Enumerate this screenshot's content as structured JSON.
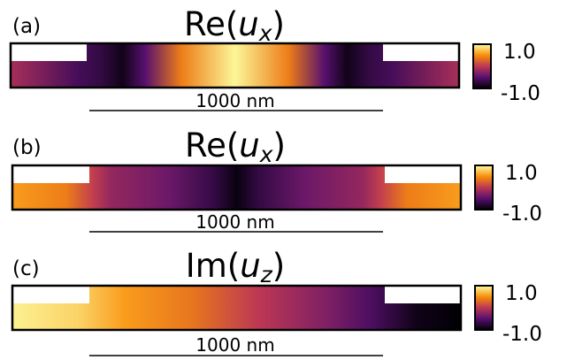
{
  "colors": {
    "frame": "#000000",
    "background": "#ffffff",
    "colormap": "inferno"
  },
  "panels": [
    {
      "letter": "(a)",
      "quantity": "Re(",
      "symbol": "u",
      "subscript": "x",
      "close": ")",
      "scale_label": "1000 nm",
      "colorbar": {
        "max_label": "1.0",
        "min_label": "-1.0",
        "max": 1.0,
        "min": -1.0
      },
      "bottom_profile": [
        [
          0,
          0.45
        ],
        [
          0.15,
          0.2
        ],
        [
          0.2,
          0.15
        ],
        [
          0.25,
          0.05
        ],
        [
          0.3,
          0.25
        ],
        [
          0.38,
          0.7
        ],
        [
          0.5,
          0.98
        ],
        [
          0.62,
          0.7
        ],
        [
          0.7,
          0.25
        ],
        [
          0.75,
          0.05
        ],
        [
          0.8,
          0.15
        ],
        [
          0.85,
          0.2
        ],
        [
          1,
          0.45
        ]
      ]
    },
    {
      "letter": "(b)",
      "quantity": "Re(",
      "symbol": "u",
      "subscript": "x",
      "close": ")",
      "scale_label": "1000 nm",
      "colorbar": {
        "max_label": "1.0",
        "min_label": "-1.0",
        "max": 1.0,
        "min": -1.0
      },
      "bottom_profile": [
        [
          0,
          0.78
        ],
        [
          0.12,
          0.7
        ],
        [
          0.18,
          0.52
        ],
        [
          0.22,
          0.4
        ],
        [
          0.35,
          0.3
        ],
        [
          0.45,
          0.15
        ],
        [
          0.5,
          0.03
        ],
        [
          0.55,
          0.15
        ],
        [
          0.65,
          0.3
        ],
        [
          0.78,
          0.4
        ],
        [
          0.82,
          0.52
        ],
        [
          0.88,
          0.7
        ],
        [
          1,
          0.78
        ]
      ]
    },
    {
      "letter": "(c)",
      "quantity": "Im(",
      "symbol": "u",
      "subscript": "z",
      "close": ")",
      "scale_label": "1000 nm",
      "colorbar": {
        "max_label": "1.0",
        "min_label": "-1.0",
        "max": 1.0,
        "min": -1.0
      },
      "bottom_profile": [
        [
          0,
          0.97
        ],
        [
          0.15,
          0.9
        ],
        [
          0.25,
          0.78
        ],
        [
          0.4,
          0.68
        ],
        [
          0.55,
          0.5
        ],
        [
          0.7,
          0.35
        ],
        [
          0.8,
          0.22
        ],
        [
          0.9,
          0.05
        ],
        [
          1,
          0.0
        ]
      ]
    }
  ]
}
